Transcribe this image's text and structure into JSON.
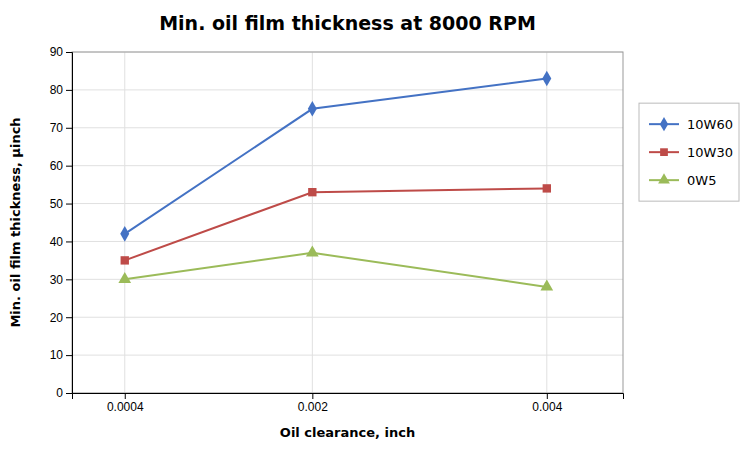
{
  "chart_data": {
    "type": "line",
    "title": "Min. oil film thickness at 8000 RPM",
    "xlabel": "Oil clearance, inch",
    "ylabel": "Min. oil film thickness, μinch",
    "x": [
      0.0004,
      0.002,
      0.004
    ],
    "xlim": [
      -5e-05,
      0.00465
    ],
    "xticks": [
      0.0004,
      0.002,
      0.004
    ],
    "series": [
      {
        "name": "10W60",
        "color": "#4472C4",
        "marker": "diamond",
        "values": [
          42,
          75,
          83
        ]
      },
      {
        "name": "10W30",
        "color": "#BE4B48",
        "marker": "square",
        "values": [
          35,
          53,
          54
        ]
      },
      {
        "name": "0W5",
        "color": "#9BBB59",
        "marker": "triangle",
        "values": [
          30,
          37,
          28
        ]
      }
    ],
    "ylim": [
      0,
      90
    ],
    "yticks": [
      0,
      10,
      20,
      30,
      40,
      50,
      60,
      70,
      80,
      90
    ],
    "grid": true,
    "legend": "right"
  }
}
